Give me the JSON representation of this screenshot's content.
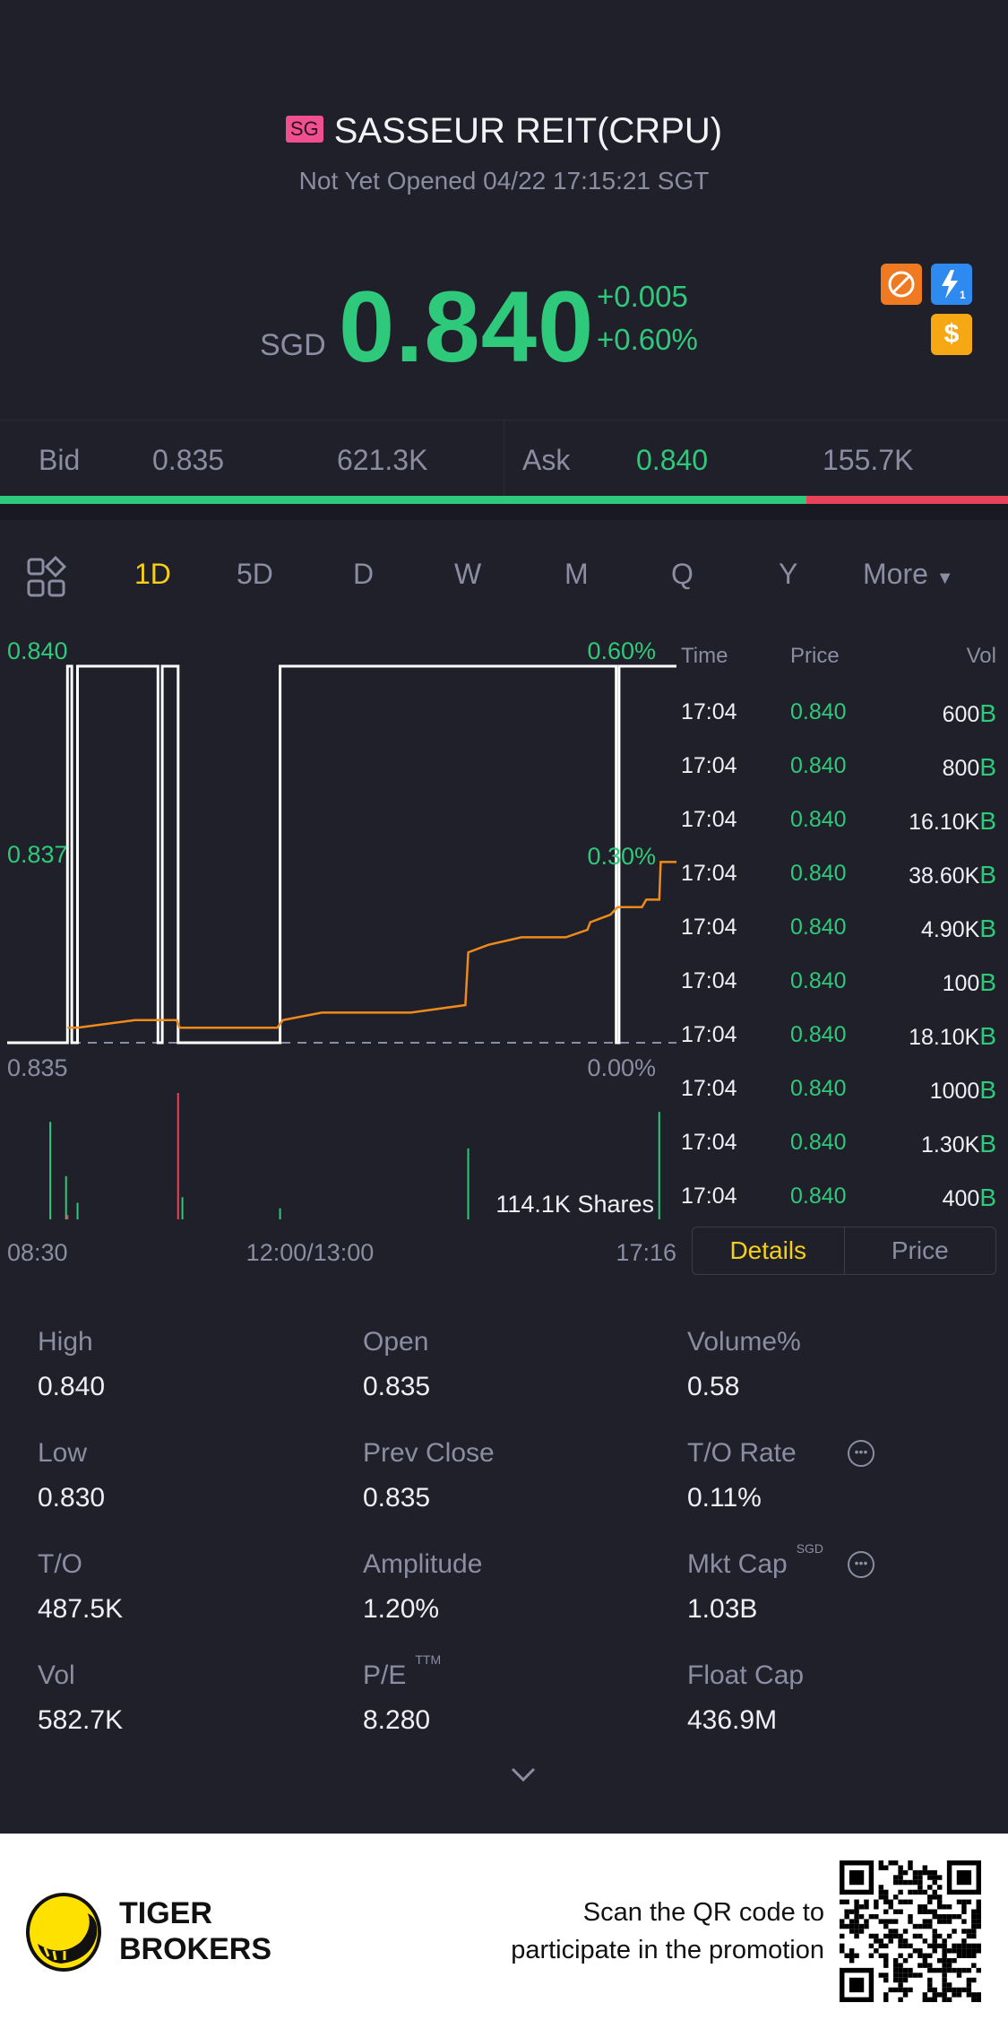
{
  "header": {
    "exchange_badge": "SG",
    "title": "SASSEUR REIT(CRPU)",
    "status": "Not Yet Opened 04/22 17:15:21 SGT"
  },
  "quote": {
    "currency": "SGD",
    "price": "0.840",
    "change": "+0.005",
    "change_pct": "+0.60%",
    "icons": [
      "no-short-icon",
      "lightning-1-icon",
      "dollar-icon"
    ]
  },
  "bid_ask": {
    "bid_label": "Bid",
    "bid_price": "0.835",
    "bid_size": "621.3K",
    "ask_label": "Ask",
    "ask_price": "0.840",
    "ask_size": "155.7K",
    "bid_ratio_pct": 79.96
  },
  "tabs": {
    "items": [
      "1D",
      "5D",
      "D",
      "W",
      "M",
      "Q",
      "Y",
      "More"
    ],
    "active": "1D",
    "layout_icon": "grid-layout-icon"
  },
  "chart_data": {
    "type": "line",
    "price_axis": {
      "labels": [
        "0.840",
        "0.837",
        "0.835"
      ],
      "range": [
        0.835,
        0.84
      ]
    },
    "pct_axis": {
      "labels": [
        "0.60%",
        "0.30%",
        "0.00%"
      ]
    },
    "x_labels": [
      "08:30",
      "12:00/13:00",
      "17:16"
    ],
    "prev_close": 0.835,
    "series": [
      {
        "color": "#ffffff",
        "points": [
          [
            "08:30",
            0.835
          ],
          [
            "09:12",
            0.835
          ],
          [
            "09:12",
            0.84
          ],
          [
            "09:15",
            0.84
          ],
          [
            "09:15",
            0.835
          ],
          [
            "09:19",
            0.835
          ],
          [
            "09:19",
            0.84
          ],
          [
            "10:15",
            0.84
          ],
          [
            "10:15",
            0.835
          ],
          [
            "10:18",
            0.835
          ],
          [
            "10:18",
            0.84
          ],
          [
            "10:29",
            0.84
          ],
          [
            "10:29",
            0.835
          ],
          [
            "11:40",
            0.835
          ],
          [
            "11:40",
            0.84
          ],
          [
            "16:34",
            0.84
          ],
          [
            "16:34",
            0.835
          ],
          [
            "16:36",
            0.835
          ],
          [
            "16:36",
            0.84
          ],
          [
            "17:16",
            0.84
          ]
        ]
      },
      {
        "color": "#f08a1a",
        "points": [
          [
            "09:12",
            0.8352
          ],
          [
            "09:19",
            0.8352
          ],
          [
            "09:59",
            0.8353
          ],
          [
            "10:28",
            0.8353
          ],
          [
            "10:30",
            0.8352
          ],
          [
            "11:38",
            0.8352
          ],
          [
            "11:42",
            0.8353
          ],
          [
            "13:09",
            0.8354
          ],
          [
            "14:11",
            0.8354
          ],
          [
            "14:49",
            0.8355
          ],
          [
            "14:51",
            0.8362
          ],
          [
            "15:05",
            0.8363
          ],
          [
            "15:28",
            0.8364
          ],
          [
            "15:59",
            0.8364
          ],
          [
            "16:14",
            0.8365
          ],
          [
            "16:16",
            0.8366
          ],
          [
            "16:30",
            0.8367
          ],
          [
            "16:35",
            0.8368
          ],
          [
            "16:52",
            0.8368
          ],
          [
            "16:55",
            0.8369
          ],
          [
            "17:04",
            0.8369
          ],
          [
            "17:05",
            0.8374
          ],
          [
            "17:16",
            0.8374
          ]
        ]
      }
    ],
    "volume_label": "114.1K Shares",
    "volume_max": 114100,
    "volume": [
      {
        "t": "09:00",
        "v": 88000,
        "dir": "up"
      },
      {
        "t": "09:11",
        "v": 39000,
        "dir": "up"
      },
      {
        "t": "09:12",
        "v": 4000,
        "dir": "down"
      },
      {
        "t": "09:19",
        "v": 15000,
        "dir": "up"
      },
      {
        "t": "10:29",
        "v": 114100,
        "dir": "down"
      },
      {
        "t": "10:32",
        "v": 20000,
        "dir": "up"
      },
      {
        "t": "11:40",
        "v": 10000,
        "dir": "up"
      },
      {
        "t": "14:51",
        "v": 64000,
        "dir": "up"
      },
      {
        "t": "17:04",
        "v": 97000,
        "dir": "up"
      }
    ],
    "colors": {
      "up": "#2ec97a",
      "down": "#e84358"
    }
  },
  "trades": {
    "headers": [
      "Time",
      "Price",
      "Vol"
    ],
    "rows": [
      {
        "time": "17:04",
        "price": "0.840",
        "vol": "600",
        "side": "B"
      },
      {
        "time": "17:04",
        "price": "0.840",
        "vol": "800",
        "side": "B"
      },
      {
        "time": "17:04",
        "price": "0.840",
        "vol": "16.10K",
        "side": "B"
      },
      {
        "time": "17:04",
        "price": "0.840",
        "vol": "38.60K",
        "side": "B"
      },
      {
        "time": "17:04",
        "price": "0.840",
        "vol": "4.90K",
        "side": "B"
      },
      {
        "time": "17:04",
        "price": "0.840",
        "vol": "100",
        "side": "B"
      },
      {
        "time": "17:04",
        "price": "0.840",
        "vol": "18.10K",
        "side": "B"
      },
      {
        "time": "17:04",
        "price": "0.840",
        "vol": "1000",
        "side": "B"
      },
      {
        "time": "17:04",
        "price": "0.840",
        "vol": "1.30K",
        "side": "B"
      },
      {
        "time": "17:04",
        "price": "0.840",
        "vol": "400",
        "side": "B"
      }
    ]
  },
  "panel_tabs": {
    "details": "Details",
    "price": "Price",
    "active": "Details"
  },
  "details": [
    {
      "label": "High",
      "value": "0.840"
    },
    {
      "label": "Open",
      "value": "0.835"
    },
    {
      "label": "Volume%",
      "value": "0.58"
    },
    {
      "label": "Low",
      "value": "0.830"
    },
    {
      "label": "Prev Close",
      "value": "0.835"
    },
    {
      "label": "T/O Rate",
      "value": "0.11%",
      "info": true
    },
    {
      "label": "T/O",
      "value": "487.5K"
    },
    {
      "label": "Amplitude",
      "value": "1.20%"
    },
    {
      "label": "Mkt Cap",
      "sup": "SGD",
      "value": "1.03B",
      "info": true
    },
    {
      "label": "Vol",
      "value": "582.7K"
    },
    {
      "label": "P/E",
      "sup": "TTM",
      "value": "8.280"
    },
    {
      "label": "Float Cap",
      "value": "436.9M"
    }
  ],
  "footer": {
    "brand_line1": "TIGER",
    "brand_line2": "BROKERS",
    "promo_line1": "Scan the QR code to",
    "promo_line2": "participate in the promotion"
  },
  "colors": {
    "background": "#1f2029",
    "up": "#2ec97a",
    "down": "#e84358",
    "accent": "#f5cf1d"
  }
}
